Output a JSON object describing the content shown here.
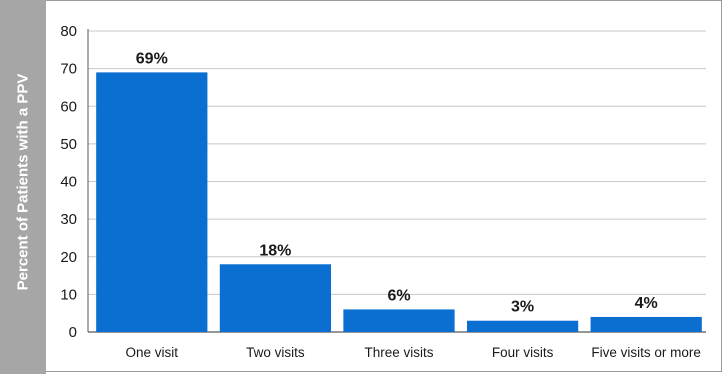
{
  "chart_data": {
    "type": "bar",
    "title": "",
    "xlabel": "",
    "ylabel": "Percent of Patients with a PPV",
    "categories": [
      "One visit",
      "Two visits",
      "Three visits",
      "Four visits",
      "Five visits or more"
    ],
    "values": [
      69,
      18,
      6,
      3,
      4
    ],
    "data_labels": [
      "69%",
      "18%",
      "6%",
      "3%",
      "4%"
    ],
    "ylim": [
      0,
      80
    ],
    "yticks": [
      0,
      10,
      20,
      30,
      40,
      50,
      60,
      70,
      80
    ],
    "grid": true,
    "legend": "none",
    "colors": {
      "bar": "#0a6fd0",
      "grid": "#c8c8c8",
      "axis": "#595959",
      "ylabel_band": "#a6a6a6",
      "ylabel_text": "#ffffff"
    }
  }
}
